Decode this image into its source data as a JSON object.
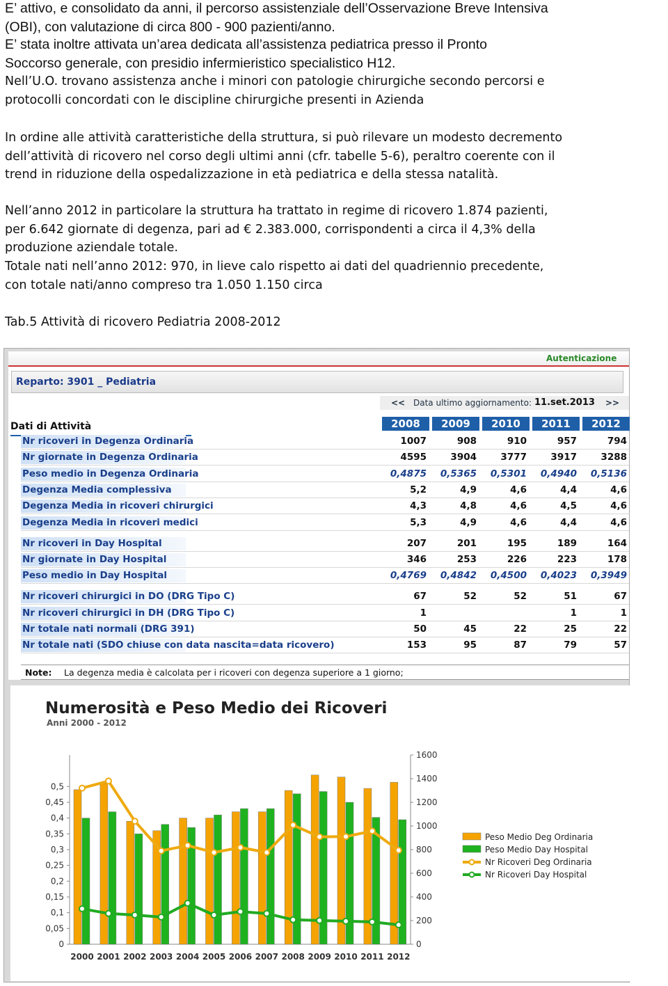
{
  "paragraphs": [
    [
      "E’ attivo, e consolidato da anni,  il percorso assistenziale dell’Osservazione Breve Intensiva",
      "(OBI), con valutazione di circa 800 - 900 pazienti/anno."
    ],
    [
      "E’ stata inoltre attivata un’area dedicata all’assistenza pediatrica presso il Pronto",
      "Soccorso generale, con presidio infermieristico specialistico H12."
    ],
    [
      "Nell’U.O. trovano assistenza anche i minori con patologie chirurgiche secondo percorsi e",
      "protocolli concordati con le discipline chirurgiche presenti in Azienda"
    ],
    [
      "In ordine alle attività caratteristiche della struttura, si può rilevare un modesto decremento",
      "dell’attività di ricovero nel corso degli ultimi anni (cfr. tabelle 5-6), peraltro coerente con il",
      "trend in riduzione della ospedalizzazione in età pediatrica e della stessa natalità."
    ],
    [
      "Nell’anno 2012 in particolare la struttura ha trattato in regime di ricovero 1.874 pazienti,",
      "per 6.642 giornate di degenza, pari ad € 2.383.000, corrispondenti a circa il 4,3% della",
      "produzione aziendale totale."
    ],
    [
      "Totale nati nell’anno 2012: 970,  in lieve calo rispetto ai dati del quadriennio precedente,",
      "con totale nati/anno compreso tra 1.050 1.150 circa"
    ]
  ],
  "caption": "Tab.5  Attività di ricovero Pediatria 2008-2012",
  "screenshot": {
    "auth": "Autenticazione",
    "department": "Reparto: 3901 _ Pediatria",
    "nav_prev": "<<",
    "update_label": "Data ultimo aggiornamento:",
    "update_date": "11.set.2013",
    "nav_next": ">>",
    "section": "Dati di Attività",
    "years": [
      2008,
      2009,
      2010,
      2011,
      2012
    ],
    "groups": [
      [
        {
          "label": "Nr ricoveri in Degenza Ordinaria",
          "values": [
            1007,
            908,
            910,
            957,
            794
          ]
        },
        {
          "label": "Nr giornate in Degenza Ordinaria",
          "values": [
            4595,
            3904,
            3777,
            3917,
            3288
          ]
        },
        {
          "label": "Peso medio in Degenza Ordinaria",
          "values": [
            "0,4875",
            "0,5365",
            "0,5301",
            "0,4940",
            "0,5136"
          ]
        },
        {
          "label": "Degenza Media complessiva",
          "values": [
            "5,2",
            "4,9",
            "4,6",
            "4,4",
            "4,6"
          ]
        },
        {
          "label": "Degenza Media in ricoveri chirurgici",
          "values": [
            "4,3",
            "4,8",
            "4,6",
            "4,5",
            "4,6"
          ]
        },
        {
          "label": "Degenza Media in ricoveri medici",
          "values": [
            "5,3",
            "4,9",
            "4,6",
            "4,4",
            "4,6"
          ]
        }
      ],
      [
        {
          "label": "Nr ricoveri in Day Hospital",
          "values": [
            207,
            201,
            195,
            189,
            164
          ]
        },
        {
          "label": "Nr giornate in Day Hospital",
          "values": [
            346,
            253,
            226,
            223,
            178
          ]
        },
        {
          "label": "Peso medio in Day Hospital",
          "values": [
            "0,4769",
            "0,4842",
            "0,4500",
            "0,4023",
            "0,3949"
          ]
        }
      ],
      [
        {
          "label": "Nr ricoveri chirurgici in DO (DRG Tipo C)",
          "values": [
            67,
            52,
            52,
            51,
            67
          ]
        },
        {
          "label": "Nr ricoveri chirurgici in DH (DRG Tipo C)",
          "values": [
            1,
            null,
            null,
            1,
            1
          ]
        },
        {
          "label": "Nr totale nati normali (DRG 391)",
          "values": [
            50,
            45,
            22,
            25,
            22
          ]
        },
        {
          "label": "Nr totale nati (SDO chiuse con data nascita=data ricovero)",
          "values": [
            153,
            95,
            87,
            79,
            57
          ]
        }
      ]
    ],
    "note_label": "Note:",
    "note": "La degenza media è calcolata per i ricoveri con degenza superiore a 1 giorno;"
  },
  "chart_data": {
    "type": "combo",
    "title": "Numerosità e Peso Medio dei Ricoveri",
    "subtitle": "Anni 2000 - 2012",
    "categories": [
      2000,
      2001,
      2002,
      2003,
      2004,
      2005,
      2006,
      2007,
      2008,
      2009,
      2010,
      2011,
      2012
    ],
    "ylim": [
      0,
      0.6
    ],
    "yticks": [
      0,
      {
        "value": 0.05,
        "label": "0,05"
      },
      {
        "value": 0.1,
        "label": "0,1"
      },
      {
        "value": 0.15,
        "label": "0,15"
      },
      {
        "value": 0.2,
        "label": "0,2"
      },
      {
        "value": 0.25,
        "label": "0,25"
      },
      {
        "value": 0.3,
        "label": "0,3"
      },
      {
        "value": 0.35,
        "label": "0,35"
      },
      {
        "value": 0.4,
        "label": "0,4"
      },
      {
        "value": 0.45,
        "label": "0,45"
      },
      {
        "value": 0.5,
        "label": "0,5"
      }
    ],
    "y2lim": [
      0,
      1600
    ],
    "y2ticks": [
      0,
      200,
      400,
      600,
      800,
      1000,
      1200,
      1400,
      1600
    ],
    "series": [
      {
        "name": "Peso Medio Deg Ordinaria",
        "type": "bar",
        "color": "#f5a300",
        "values": [
          0.49,
          0.51,
          0.39,
          0.36,
          0.4,
          0.4,
          0.42,
          0.42,
          0.4875,
          0.5365,
          0.5301,
          0.494,
          0.5136
        ]
      },
      {
        "name": "Peso Medio Day Hospital",
        "type": "bar",
        "color": "#1fb21f",
        "values": [
          0.4,
          0.42,
          0.35,
          0.38,
          0.37,
          0.41,
          0.43,
          0.43,
          0.4769,
          0.4842,
          0.45,
          0.4023,
          0.3949
        ]
      },
      {
        "name": "Nr Ricoveri Deg Ordinaria",
        "type": "line",
        "axis": "y2",
        "color": "#eeaa10",
        "values": [
          1320,
          1380,
          1040,
          790,
          835,
          776,
          818,
          776,
          1007,
          908,
          910,
          957,
          794
        ]
      },
      {
        "name": "Nr Ricoveri Day Hospital",
        "type": "line",
        "axis": "y2",
        "color": "#22aa22",
        "values": [
          300,
          260,
          247,
          230,
          347,
          247,
          276,
          260,
          207,
          201,
          195,
          189,
          164
        ]
      }
    ]
  }
}
